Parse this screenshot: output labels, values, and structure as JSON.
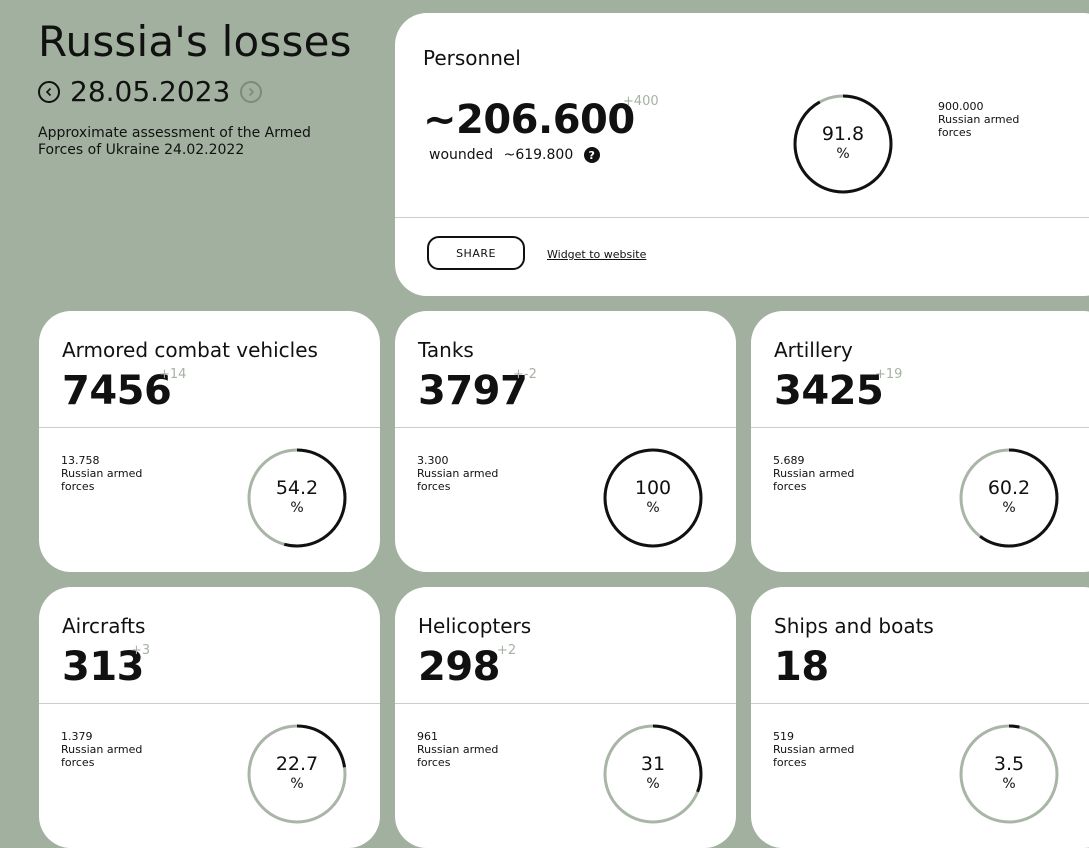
{
  "header": {
    "title": "Russia's losses",
    "date": "28.05.2023",
    "subtitle": "Approximate assessment of the Armed Forces of Ukraine 24.02.2022"
  },
  "personnel": {
    "name": "Personnel",
    "value": "~206.600",
    "delta": "+400",
    "wounded_label": "wounded",
    "wounded_value": "~619.800",
    "help_icon": "?",
    "total": "900.000",
    "total_label": "Russian armed forces",
    "percent": "91.8",
    "percent_sign": "%",
    "share_label": "SHARE",
    "widget_label": "Widget to website"
  },
  "cards": [
    {
      "name": "Armored combat vehicles",
      "value": "7456",
      "delta": "+14",
      "total": "13.758",
      "total_label": "Russian armed forces",
      "percent": "54.2",
      "percent_sign": "%"
    },
    {
      "name": "Tanks",
      "value": "3797",
      "delta": "+-2",
      "total": "3.300",
      "total_label": "Russian armed forces",
      "percent": "100",
      "percent_sign": "%"
    },
    {
      "name": "Artillery",
      "value": "3425",
      "delta": "+19",
      "total": "5.689",
      "total_label": "Russian armed forces",
      "percent": "60.2",
      "percent_sign": "%"
    },
    {
      "name": "Aircrafts",
      "value": "313",
      "delta": "+3",
      "total": "1.379",
      "total_label": "Russian armed forces",
      "percent": "22.7",
      "percent_sign": "%"
    },
    {
      "name": "Helicopters",
      "value": "298",
      "delta": "+2",
      "total": "961",
      "total_label": "Russian armed forces",
      "percent": "31",
      "percent_sign": "%"
    },
    {
      "name": "Ships and boats",
      "value": "18",
      "delta": "",
      "total": "519",
      "total_label": "Russian armed forces",
      "percent": "3.5",
      "percent_sign": "%"
    }
  ],
  "icons": {
    "prev": "chevron-left-icon",
    "next": "chevron-right-icon",
    "help": "question-icon"
  },
  "colors": {
    "background": "#a2b19f",
    "ring_track": "#a9b5a6",
    "ring_fill": "#111111",
    "delta": "#a7b2a5"
  }
}
